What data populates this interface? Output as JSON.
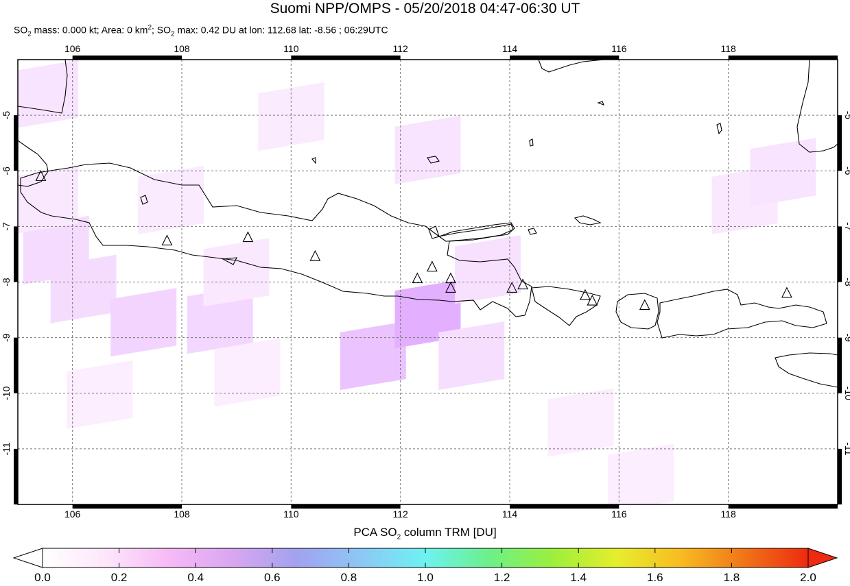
{
  "header": {
    "title": "Suomi NPP/OMPS - 05/20/2018 04:47-06:30 UT",
    "stats": {
      "mass_label": "SO",
      "mass_sub": "2",
      "mass_text": " mass: 0.000 kt; Area: 0 km",
      "area_sup": "2",
      "max_label": "; SO",
      "max_sub": "2",
      "max_text": " max: 0.42 DU at lon: 112.68 lat: -8.56 ; 06:29UTC"
    }
  },
  "map": {
    "lon_range": [
      105.0,
      120.0
    ],
    "lat_range": [
      -12.0,
      -4.0
    ],
    "x_ticks": [
      "106",
      "108",
      "110",
      "112",
      "114",
      "116",
      "118"
    ],
    "y_ticks": [
      "-5",
      "-6",
      "-7",
      "-8",
      "-9",
      "-10",
      "-11"
    ],
    "volcano_marker": "triangle-icon",
    "volcanoes": [
      {
        "lon": 105.42,
        "lat": -6.1
      },
      {
        "lon": 107.73,
        "lat": -7.26
      },
      {
        "lon": 109.21,
        "lat": -7.2
      },
      {
        "lon": 110.44,
        "lat": -7.54
      },
      {
        "lon": 112.31,
        "lat": -7.94
      },
      {
        "lon": 112.58,
        "lat": -7.73
      },
      {
        "lon": 112.92,
        "lat": -7.94
      },
      {
        "lon": 112.92,
        "lat": -8.11
      },
      {
        "lon": 114.04,
        "lat": -8.11
      },
      {
        "lon": 114.24,
        "lat": -8.05
      },
      {
        "lon": 115.38,
        "lat": -8.24
      },
      {
        "lon": 115.51,
        "lat": -8.34
      },
      {
        "lon": 116.47,
        "lat": -8.42
      },
      {
        "lon": 119.07,
        "lat": -8.2
      }
    ],
    "so2_cells": [
      {
        "lon": 106.2,
        "lat": -8.1,
        "du": 0.15
      },
      {
        "lon": 107.3,
        "lat": -8.7,
        "du": 0.2
      },
      {
        "lon": 108.7,
        "lat": -8.65,
        "du": 0.18
      },
      {
        "lon": 111.5,
        "lat": -9.3,
        "du": 0.3
      },
      {
        "lon": 112.5,
        "lat": -8.55,
        "du": 0.42
      },
      {
        "lon": 113.3,
        "lat": -9.3,
        "du": 0.14
      },
      {
        "lon": 113.6,
        "lat": -7.75,
        "du": 0.12
      },
      {
        "lon": 105.7,
        "lat": -7.4,
        "du": 0.15
      },
      {
        "lon": 105.5,
        "lat": -6.5,
        "du": 0.08
      },
      {
        "lon": 105.5,
        "lat": -4.6,
        "du": 0.1
      },
      {
        "lon": 112.5,
        "lat": -5.6,
        "du": 0.1
      },
      {
        "lon": 118.3,
        "lat": -6.5,
        "du": 0.08
      },
      {
        "lon": 119.0,
        "lat": -6.0,
        "du": 0.1
      },
      {
        "lon": 109.0,
        "lat": -7.8,
        "du": 0.08
      },
      {
        "lon": 110.0,
        "lat": -5.0,
        "du": 0.06
      },
      {
        "lon": 115.3,
        "lat": -10.5,
        "du": 0.05
      },
      {
        "lon": 116.4,
        "lat": -11.5,
        "du": 0.05
      },
      {
        "lon": 106.5,
        "lat": -10.0,
        "du": 0.05
      },
      {
        "lon": 107.8,
        "lat": -6.5,
        "du": 0.06
      },
      {
        "lon": 109.2,
        "lat": -9.6,
        "du": 0.05
      }
    ]
  },
  "colorbar": {
    "title_prefix": "PCA SO",
    "title_sub": "2",
    "title_suffix": " column TRM [DU]",
    "labels": [
      "0.0",
      "0.2",
      "0.4",
      "0.6",
      "0.8",
      "1.0",
      "1.2",
      "1.4",
      "1.6",
      "1.8",
      "2.0"
    ],
    "range": [
      0.0,
      2.0
    ],
    "colors": [
      "#ffffff",
      "#fde6fa",
      "#f6b9f6",
      "#d8a6f0",
      "#a2a2ef",
      "#8cc8f5",
      "#6df2f2",
      "#6cf08a",
      "#9cef3c",
      "#e6ee2c",
      "#f8bc22",
      "#f07418",
      "#ee2a10"
    ]
  }
}
